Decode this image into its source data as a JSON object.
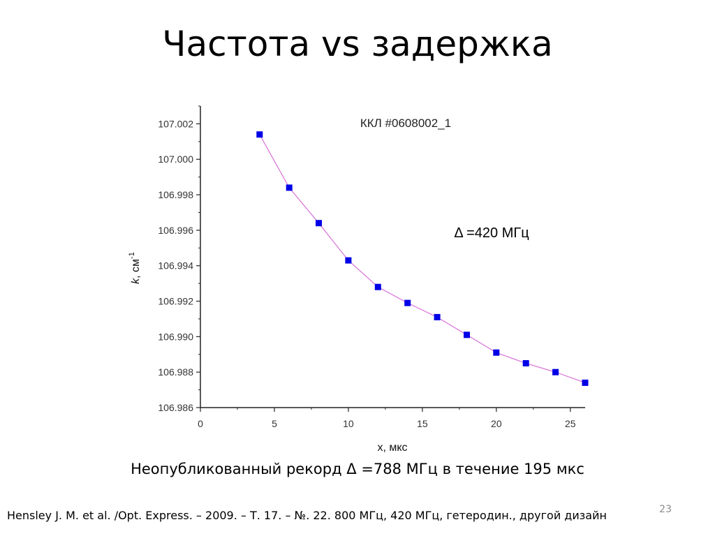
{
  "slide": {
    "title": "Частота vs задержка",
    "caption": "Неопубликованный рекорд  Δ =788 МГц в течение 195 мкс",
    "footnote": "Hensley J. M. et al. /Opt. Express. – 2009. – Т. 17. – №. 22. 800 МГц, 420 МГц, гетеродин., другой дизайн",
    "page_number": "23"
  },
  "chart_data": {
    "type": "line",
    "title": "ККЛ #0608002_1",
    "annotation": "Δ =420 МГц",
    "xlabel": "x, мкс",
    "ylabel_main": "k",
    "ylabel_unit": ", см",
    "ylabel_exp": "-1",
    "xlim": [
      0,
      26
    ],
    "ylim": [
      106.986,
      107.003
    ],
    "x_ticks": [
      0,
      5,
      10,
      15,
      20,
      25
    ],
    "x_tick_labels": [
      "0",
      "5",
      "10",
      "15",
      "20",
      "25"
    ],
    "y_ticks": [
      106.986,
      106.988,
      106.99,
      106.992,
      106.994,
      106.996,
      106.998,
      107.0,
      107.002
    ],
    "y_tick_labels": [
      "106.986",
      "106.988",
      "106.990",
      "106.992",
      "106.994",
      "106.996",
      "106.998",
      "107.000",
      "107.002"
    ],
    "grid": false,
    "series": [
      {
        "x": [
          4,
          6,
          8,
          10,
          12,
          14,
          16,
          18,
          20,
          22,
          24,
          26
        ],
        "y": [
          107.0014,
          106.9984,
          106.9964,
          106.9943,
          106.9928,
          106.9919,
          106.9911,
          106.9901,
          106.9891,
          106.9885,
          106.988,
          106.9874
        ],
        "line_color": "#d97bd9",
        "marker_color": "#0000e6"
      }
    ]
  }
}
